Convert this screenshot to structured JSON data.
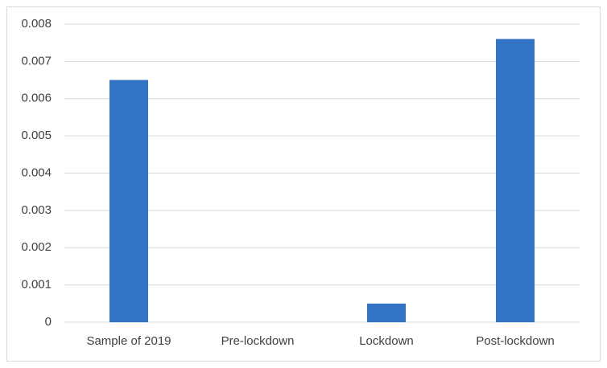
{
  "chart_data": {
    "type": "bar",
    "categories": [
      "Sample of 2019",
      "Pre-lockdown",
      "Lockdown",
      "Post-lockdown"
    ],
    "values": [
      0.0065,
      0,
      0.0005,
      0.0076
    ],
    "color": "#3373c4",
    "ylim": [
      0,
      0.008
    ],
    "yticks": [
      0,
      0.001,
      0.002,
      0.003,
      0.004,
      0.005,
      0.006,
      0.007,
      0.008
    ],
    "grid": true
  }
}
